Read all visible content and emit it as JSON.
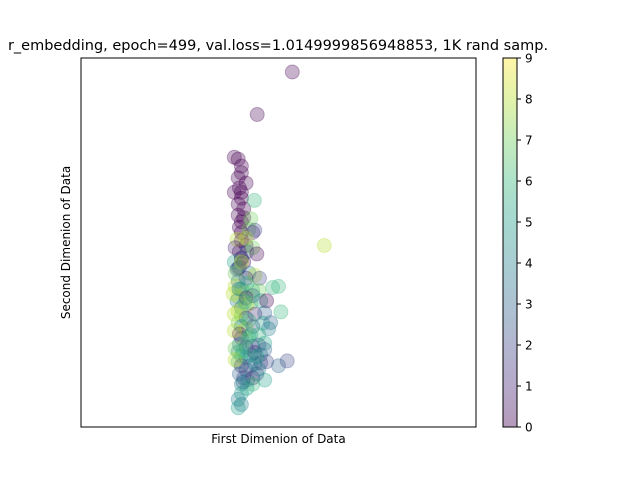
{
  "chart_data": {
    "type": "scatter",
    "title": "r_embedding, epoch=499, val.loss=1.0149999856948853, 1K rand samp.",
    "xlabel": "First Dimenion of Data",
    "ylabel": "Second Dimenion of Data",
    "x_ticks_shown": false,
    "y_ticks_shown": false,
    "xlim": [
      0,
      100
    ],
    "ylim": [
      0,
      100
    ],
    "marker_alpha": 0.3,
    "colorbar": {
      "colormap": "viridis",
      "range": [
        0,
        9
      ],
      "ticks": [
        "0",
        "1",
        "2",
        "3",
        "4",
        "5",
        "6",
        "7",
        "8",
        "9"
      ]
    },
    "points": [
      [
        53.5,
        96.2,
        0
      ],
      [
        44.6,
        84.7,
        0
      ],
      [
        38.8,
        73.1,
        0
      ],
      [
        39.8,
        72.6,
        0
      ],
      [
        40.6,
        70.7,
        0
      ],
      [
        40.6,
        68.9,
        0
      ],
      [
        39.8,
        67.5,
        0
      ],
      [
        41.8,
        66.1,
        0
      ],
      [
        40.1,
        64.8,
        0
      ],
      [
        40.6,
        63.6,
        0
      ],
      [
        38.8,
        63.6,
        0
      ],
      [
        40.6,
        62.0,
        0
      ],
      [
        39.8,
        60.4,
        0
      ],
      [
        41.2,
        59.1,
        0
      ],
      [
        39.8,
        57.4,
        0
      ],
      [
        41.2,
        56.7,
        0
      ],
      [
        40.6,
        55.6,
        0
      ],
      [
        40.1,
        54.1,
        0
      ],
      [
        40.6,
        52.7,
        0
      ],
      [
        40.6,
        50.5,
        0
      ],
      [
        41.8,
        49.2,
        0
      ],
      [
        40.1,
        47.5,
        0
      ],
      [
        40.6,
        45.8,
        0
      ],
      [
        41.2,
        44.7,
        0
      ],
      [
        40.1,
        43.3,
        0
      ],
      [
        43.9,
        61.4,
        6
      ],
      [
        43.0,
        56.4,
        7
      ],
      [
        42.5,
        53.6,
        7
      ],
      [
        43.5,
        52.7,
        1
      ],
      [
        44.0,
        53.3,
        2
      ],
      [
        41.8,
        51.1,
        8
      ],
      [
        39.5,
        50.8,
        8
      ],
      [
        39.0,
        48.6,
        1
      ],
      [
        42.0,
        47.5,
        3
      ],
      [
        43.5,
        48.6,
        7
      ],
      [
        44.5,
        46.9,
        0
      ],
      [
        40.6,
        45.5,
        2
      ],
      [
        38.8,
        44.7,
        5
      ],
      [
        39.8,
        43.0,
        3
      ],
      [
        39.5,
        42.7,
        2
      ],
      [
        42.5,
        41.7,
        4
      ],
      [
        44.0,
        41.1,
        8
      ],
      [
        45.2,
        40.3,
        2
      ],
      [
        41.8,
        40.3,
        1
      ],
      [
        39.8,
        39.5,
        3
      ],
      [
        39.0,
        38.1,
        8
      ],
      [
        40.6,
        37.4,
        5
      ],
      [
        41.5,
        36.4,
        8
      ],
      [
        43.5,
        37.0,
        6
      ],
      [
        45.0,
        37.0,
        7
      ],
      [
        48.5,
        37.8,
        6
      ],
      [
        50.0,
        38.1,
        6
      ],
      [
        39.8,
        35.3,
        8
      ],
      [
        39.5,
        34.2,
        4
      ],
      [
        41.8,
        35.0,
        0
      ],
      [
        42.0,
        33.1,
        8
      ],
      [
        40.6,
        32.3,
        3
      ],
      [
        43.0,
        33.6,
        7
      ],
      [
        45.5,
        34.2,
        5
      ],
      [
        47.0,
        34.2,
        0
      ],
      [
        39.8,
        31.4,
        8
      ],
      [
        40.6,
        30.3,
        7
      ],
      [
        41.8,
        29.5,
        2
      ],
      [
        44.0,
        30.6,
        1
      ],
      [
        46.5,
        30.9,
        3
      ],
      [
        50.6,
        31.2,
        6
      ],
      [
        39.8,
        28.3,
        7
      ],
      [
        40.6,
        27.2,
        4
      ],
      [
        41.8,
        26.6,
        8
      ],
      [
        43.5,
        27.2,
        2
      ],
      [
        46.0,
        28.1,
        5
      ],
      [
        48.0,
        28.3,
        3
      ],
      [
        40.1,
        25.2,
        0
      ],
      [
        40.6,
        24.1,
        1
      ],
      [
        41.8,
        23.5,
        7
      ],
      [
        43.0,
        25.0,
        5
      ],
      [
        45.0,
        25.0,
        6
      ],
      [
        47.5,
        26.6,
        4
      ],
      [
        40.1,
        22.4,
        4
      ],
      [
        41.8,
        21.6,
        2
      ],
      [
        43.5,
        21.9,
        3
      ],
      [
        45.0,
        22.2,
        2
      ],
      [
        46.5,
        22.7,
        5
      ],
      [
        39.8,
        20.4,
        4
      ],
      [
        40.6,
        19.3,
        5
      ],
      [
        41.8,
        18.8,
        5
      ],
      [
        43.0,
        19.6,
        4
      ],
      [
        44.0,
        20.2,
        1
      ],
      [
        45.5,
        19.6,
        4
      ],
      [
        46.5,
        21.0,
        3
      ],
      [
        39.8,
        17.7,
        6
      ],
      [
        40.6,
        16.6,
        1
      ],
      [
        41.8,
        15.5,
        2
      ],
      [
        43.0,
        16.6,
        3
      ],
      [
        44.0,
        17.1,
        4
      ],
      [
        45.5,
        17.4,
        2
      ],
      [
        47.0,
        17.7,
        2
      ],
      [
        50.0,
        16.6,
        3
      ],
      [
        52.2,
        17.9,
        2
      ],
      [
        40.1,
        14.4,
        3
      ],
      [
        41.2,
        13.3,
        2
      ],
      [
        42.2,
        12.7,
        4
      ],
      [
        43.5,
        13.3,
        1
      ],
      [
        44.5,
        14.4,
        2
      ],
      [
        46.5,
        12.7,
        5
      ],
      [
        40.6,
        11.6,
        4
      ],
      [
        42.0,
        10.5,
        5
      ],
      [
        43.5,
        11.6,
        6
      ],
      [
        40.6,
        9.1,
        5
      ],
      [
        39.8,
        7.5,
        4
      ],
      [
        39.8,
        5.2,
        5
      ],
      [
        40.6,
        6.1,
        4
      ],
      [
        40.6,
        44.7,
        8
      ],
      [
        39.0,
        41.6,
        7
      ],
      [
        42.0,
        38.9,
        6
      ],
      [
        38.5,
        36.1,
        8
      ],
      [
        43.5,
        35.6,
        3
      ],
      [
        41.5,
        33.9,
        6
      ],
      [
        38.8,
        30.6,
        8
      ],
      [
        42.5,
        28.9,
        6
      ],
      [
        38.8,
        26.1,
        8
      ],
      [
        42.5,
        24.4,
        6
      ],
      [
        39.0,
        21.3,
        7
      ],
      [
        44.5,
        19.1,
        5
      ],
      [
        39.0,
        18.2,
        8
      ],
      [
        45.0,
        15.7,
        4
      ],
      [
        41.0,
        12.2,
        3
      ],
      [
        61.6,
        49.2,
        8
      ],
      [
        40.0,
        37.4,
        4
      ],
      [
        41.0,
        20.7,
        6
      ]
    ]
  }
}
